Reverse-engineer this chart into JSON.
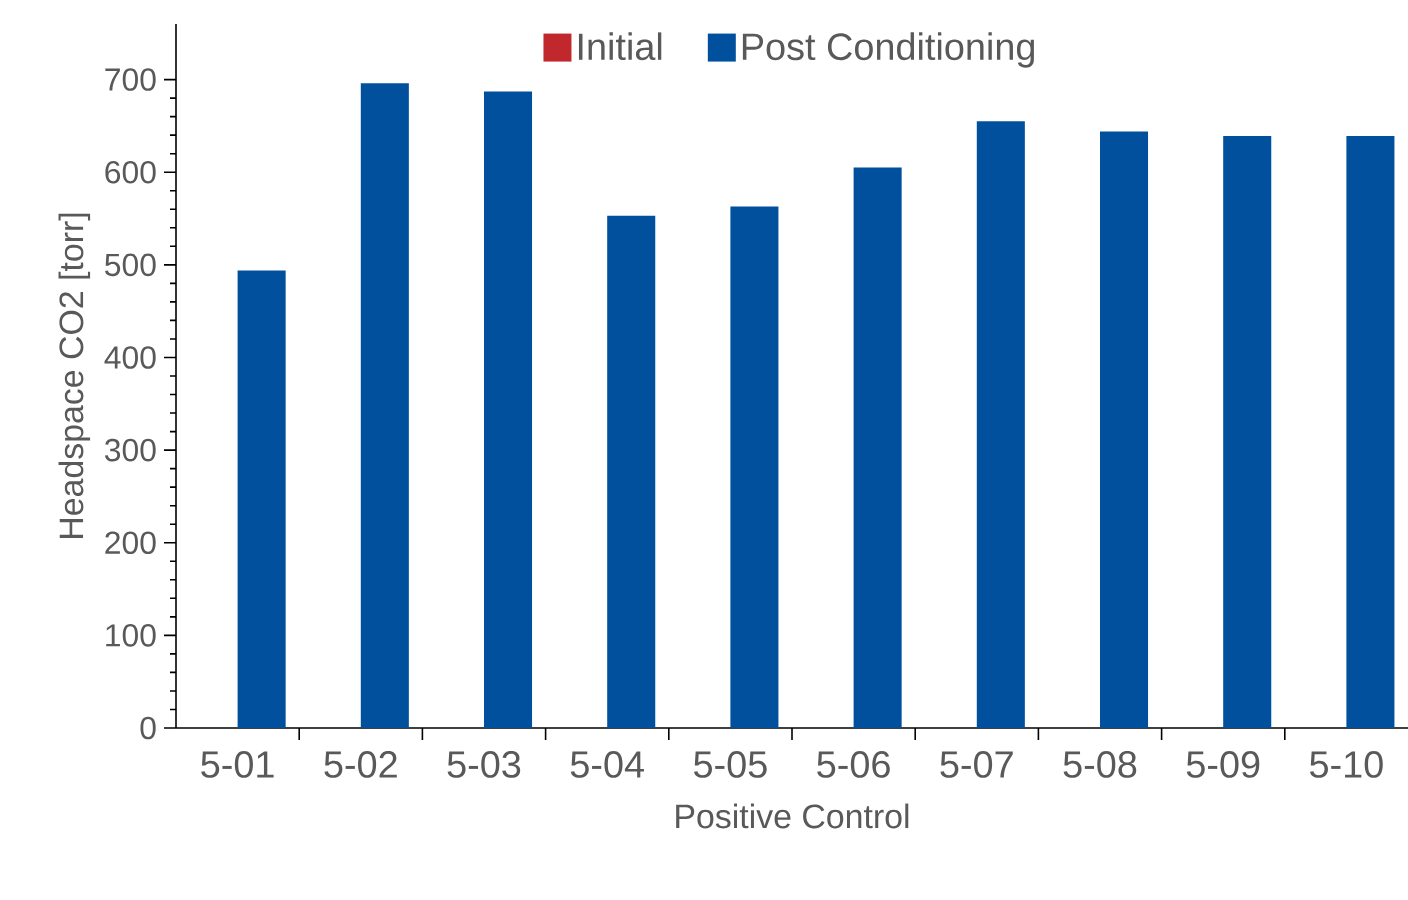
{
  "chart_data": {
    "type": "bar",
    "xlabel": "Positive Control",
    "ylabel": "Headspace CO2 [torr]",
    "categories": [
      "5-01",
      "5-02",
      "5-03",
      "5-04",
      "5-05",
      "5-06",
      "5-07",
      "5-08",
      "5-09",
      "5-10"
    ],
    "series": [
      {
        "name": "Initial",
        "color": "#c0282d",
        "values": [
          null,
          null,
          null,
          null,
          null,
          null,
          null,
          null,
          null,
          null
        ]
      },
      {
        "name": "Post Conditioning",
        "color": "#00509e",
        "values": [
          494,
          696,
          687,
          553,
          563,
          605,
          655,
          644,
          639,
          639
        ]
      }
    ],
    "ylim": [
      0,
      760
    ],
    "yticks": [
      0,
      100,
      200,
      300,
      400,
      500,
      600,
      700
    ],
    "grid": false,
    "legend": "top"
  }
}
